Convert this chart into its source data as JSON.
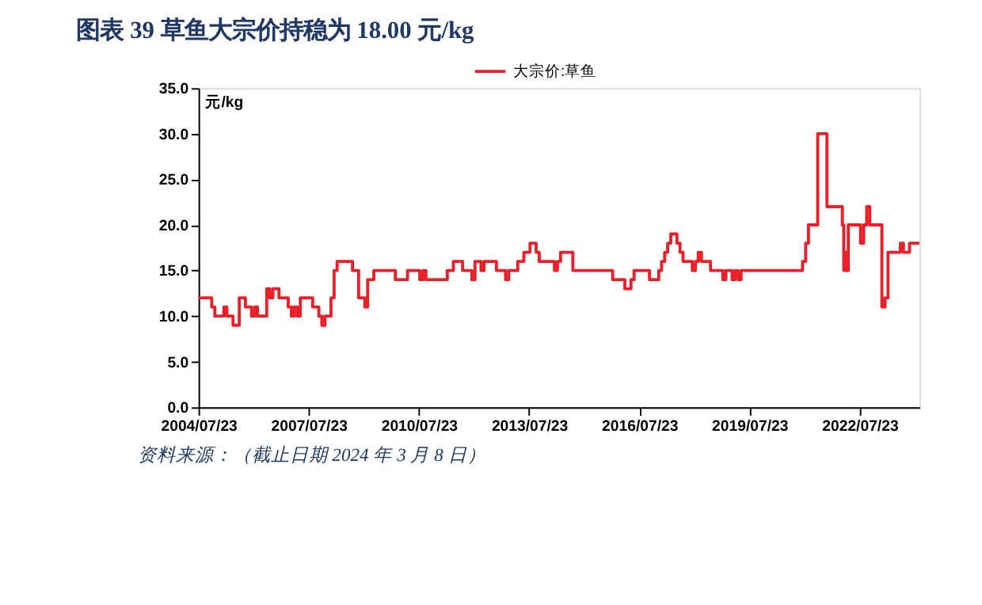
{
  "chart_data": {
    "type": "step",
    "title": "图表 39   草鱼大宗价持稳为 18.00 元/kg",
    "ylabel": "元/kg",
    "annotations": [
      "资料来源：（截止日期 2024 年 3 月 8 日）"
    ],
    "series": [
      {
        "name": "大宗价:草鱼",
        "color": "#e8202a",
        "x": [
          "2004-07-23",
          "2004-12",
          "2005-01",
          "2005-04",
          "2005-05",
          "2005-07",
          "2005-09",
          "2005-11",
          "2006-01",
          "2006-02",
          "2006-03",
          "2006-06",
          "2006-07",
          "2006-08",
          "2006-10",
          "2007-01",
          "2007-02",
          "2007-03",
          "2007-04",
          "2007-05",
          "2007-09",
          "2007-11",
          "2007-12",
          "2008-01",
          "2008-03",
          "2008-04",
          "2008-05",
          "2008-10",
          "2008-12",
          "2009-02",
          "2009-03",
          "2009-05",
          "2009-12",
          "2010-04",
          "2010-08",
          "2010-09",
          "2010-10",
          "2011-05",
          "2011-07",
          "2011-10",
          "2012-01",
          "2012-02",
          "2012-04",
          "2012-05",
          "2012-09",
          "2012-12",
          "2013-01",
          "2013-04",
          "2013-06",
          "2013-08",
          "2013-10",
          "2013-11",
          "2014-04",
          "2014-05",
          "2014-06",
          "2014-10",
          "2015-11",
          "2016-03",
          "2016-05",
          "2016-06",
          "2016-11",
          "2017-02",
          "2017-03",
          "2017-04",
          "2017-05",
          "2017-06",
          "2017-08",
          "2017-09",
          "2017-10",
          "2018-01",
          "2018-02",
          "2018-03",
          "2018-04",
          "2018-07",
          "2018-11",
          "2018-12",
          "2019-02",
          "2019-03",
          "2019-04",
          "2019-05",
          "2021-01",
          "2021-02",
          "2021-03",
          "2021-06",
          "2021-09",
          "2022-02",
          "2022-02-15",
          "2022-03",
          "2022-03-15",
          "2022-04",
          "2022-08",
          "2022-09",
          "2022-10",
          "2022-11",
          "2023-03",
          "2023-04",
          "2023-05",
          "2023-09",
          "2023-10",
          "2023-12",
          "2024-03-08"
        ],
        "values": [
          12,
          11,
          10,
          11,
          10,
          9,
          12,
          11,
          10,
          11,
          10,
          13,
          12,
          13,
          12,
          11,
          10,
          11,
          10,
          12,
          11,
          10,
          9,
          10,
          12,
          15,
          16,
          15,
          12,
          11,
          14,
          15,
          14,
          15,
          14,
          15,
          14,
          15,
          16,
          15,
          14,
          16,
          15,
          16,
          15,
          14,
          15,
          16,
          17,
          18,
          17,
          16,
          15,
          16,
          17,
          15,
          14,
          13,
          14,
          15,
          14,
          15,
          16,
          17,
          18,
          19,
          18,
          17,
          16,
          15,
          16,
          17,
          16,
          15,
          14,
          15,
          14,
          15,
          14,
          15,
          16,
          18,
          20,
          30,
          22,
          20,
          15,
          17,
          15,
          20,
          18,
          20,
          22,
          20,
          11,
          12,
          17,
          18,
          17,
          18,
          18
        ]
      }
    ],
    "xlim": [
      "2004-07-23",
      "2024-03-08"
    ],
    "xticks": [
      {
        "value": "2004-07-23",
        "label": "2004/07/23"
      },
      {
        "value": "2007-07-23",
        "label": "2007/07/23"
      },
      {
        "value": "2010-07-23",
        "label": "2010/07/23"
      },
      {
        "value": "2013-07-23",
        "label": "2013/07/23"
      },
      {
        "value": "2016-07-23",
        "label": "2016/07/23"
      },
      {
        "value": "2019-07-23",
        "label": "2019/07/23"
      },
      {
        "value": "2022-07-23",
        "label": "2022/07/23"
      }
    ],
    "ylim": [
      0,
      35
    ],
    "yticks": [
      {
        "value": 0,
        "label": "0.0"
      },
      {
        "value": 5,
        "label": "5.0"
      },
      {
        "value": 10,
        "label": "10.0"
      },
      {
        "value": 15,
        "label": "15.0"
      },
      {
        "value": 20,
        "label": "20.0"
      },
      {
        "value": 25,
        "label": "25.0"
      },
      {
        "value": 30,
        "label": "30.0"
      },
      {
        "value": 35,
        "label": "35.0"
      }
    ],
    "grid": false,
    "legend": "top",
    "marker": "none",
    "line_style": "solid"
  }
}
